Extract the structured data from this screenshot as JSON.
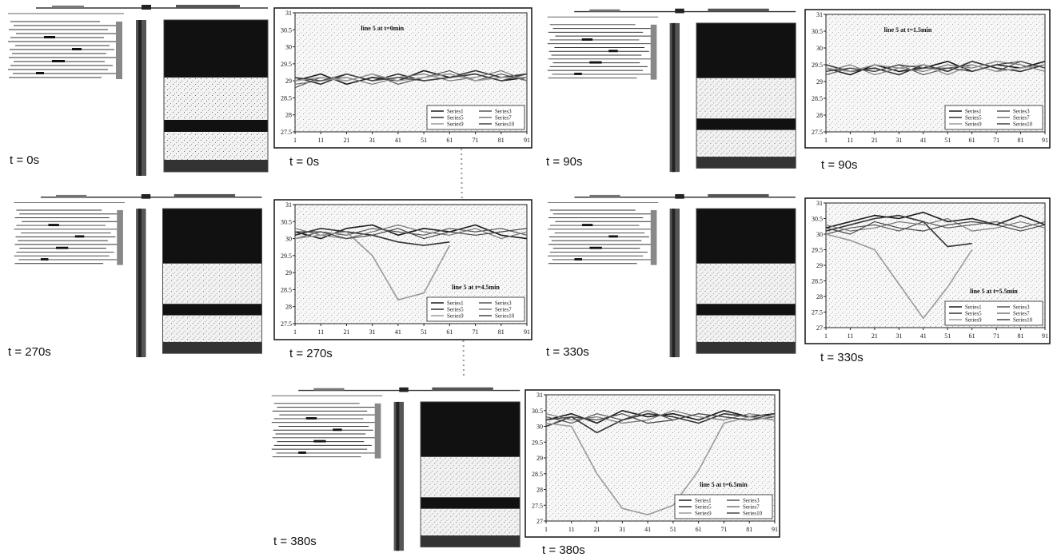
{
  "panels": [
    {
      "image_label": "t = 0s",
      "chart_label": "t = 0s"
    },
    {
      "image_label": "t = 90s",
      "chart_label": "t = 90s"
    },
    {
      "image_label": "t = 270s",
      "chart_label": "t = 270s"
    },
    {
      "image_label": "t = 330s",
      "chart_label": "t = 330s"
    },
    {
      "image_label": "t = 380s",
      "chart_label": "t = 380s"
    }
  ],
  "chart_data": [
    {
      "type": "line",
      "title": "line 5 at t=0min",
      "legend": "lower right",
      "x": [
        1,
        11,
        21,
        31,
        41,
        51,
        61,
        71,
        81,
        91
      ],
      "xlim": [
        1,
        91
      ],
      "xticks": [
        1,
        11,
        21,
        31,
        41,
        51,
        61,
        71,
        81,
        91
      ],
      "ylim": [
        27.5,
        31
      ],
      "yticks": [
        27.5,
        28,
        28.5,
        29,
        29.5,
        30,
        30.5,
        31
      ],
      "series": [
        {
          "name": "Series1",
          "color": "#1a1a1a",
          "values": [
            29.0,
            29.2,
            28.9,
            29.1,
            29.0,
            29.3,
            29.1,
            29.2,
            29.0,
            29.1
          ]
        },
        {
          "name": "Series3",
          "color": "#555555",
          "values": [
            28.8,
            29.1,
            29.0,
            29.2,
            28.9,
            29.1,
            29.3,
            29.0,
            29.2,
            29.0
          ]
        },
        {
          "name": "Series5",
          "color": "#333333",
          "values": [
            29.1,
            28.9,
            29.2,
            29.0,
            29.2,
            29.0,
            29.1,
            29.3,
            29.1,
            29.2
          ]
        },
        {
          "name": "Series7",
          "color": "#777777",
          "values": [
            28.9,
            29.0,
            29.1,
            28.9,
            29.1,
            29.2,
            29.0,
            29.1,
            29.3,
            29.0
          ]
        },
        {
          "name": "Series9",
          "color": "#9a9a9a",
          "values": [
            29.0,
            29.1,
            29.0,
            29.2,
            29.0,
            29.1,
            29.2,
            29.0,
            29.1,
            29.1
          ]
        },
        {
          "name": "Series10",
          "color": "#444444",
          "values": [
            29.1,
            29.0,
            29.2,
            29.0,
            29.1,
            29.0,
            29.1,
            29.2,
            29.0,
            29.2
          ]
        }
      ]
    },
    {
      "type": "line",
      "title": "line 5 at t=1.5min",
      "legend": "lower right",
      "x": [
        1,
        11,
        21,
        31,
        41,
        51,
        61,
        71,
        81,
        91
      ],
      "xlim": [
        1,
        91
      ],
      "xticks": [
        1,
        11,
        21,
        31,
        41,
        51,
        61,
        71,
        81,
        91
      ],
      "ylim": [
        27.5,
        31
      ],
      "yticks": [
        27.5,
        28,
        28.5,
        29,
        29.5,
        30,
        30.5,
        31
      ],
      "series": [
        {
          "name": "Series1",
          "color": "#1a1a1a",
          "values": [
            29.4,
            29.2,
            29.5,
            29.3,
            29.4,
            29.6,
            29.3,
            29.5,
            29.4,
            29.6
          ]
        },
        {
          "name": "Series3",
          "color": "#555555",
          "values": [
            29.2,
            29.4,
            29.3,
            29.5,
            29.2,
            29.4,
            29.5,
            29.3,
            29.6,
            29.4
          ]
        },
        {
          "name": "Series5",
          "color": "#333333",
          "values": [
            29.5,
            29.3,
            29.4,
            29.2,
            29.5,
            29.3,
            29.6,
            29.4,
            29.3,
            29.5
          ]
        },
        {
          "name": "Series7",
          "color": "#777777",
          "values": [
            29.3,
            29.5,
            29.2,
            29.4,
            29.3,
            29.5,
            29.4,
            29.6,
            29.5,
            29.3
          ]
        },
        {
          "name": "Series9",
          "color": "#9a9a9a",
          "values": [
            29.4,
            29.3,
            29.5,
            29.4,
            29.5,
            29.2,
            29.5,
            29.3,
            29.4,
            29.5
          ]
        },
        {
          "name": "Series10",
          "color": "#444444",
          "values": [
            29.3,
            29.4,
            29.3,
            29.5,
            29.4,
            29.4,
            29.3,
            29.5,
            29.6,
            29.4
          ]
        }
      ]
    },
    {
      "type": "line",
      "title": "line 5 at t=4.5min",
      "legend": "lower right",
      "x": [
        1,
        11,
        21,
        31,
        41,
        51,
        61,
        71,
        81,
        91
      ],
      "xlim": [
        1,
        91
      ],
      "xticks": [
        1,
        11,
        21,
        31,
        41,
        51,
        61,
        71,
        81,
        91
      ],
      "ylim": [
        27.5,
        31
      ],
      "yticks": [
        27.5,
        28,
        28.5,
        29,
        29.5,
        30,
        30.5,
        31
      ],
      "series": [
        {
          "name": "Series1",
          "color": "#1a1a1a",
          "values": [
            30.2,
            30.0,
            30.3,
            30.4,
            30.1,
            30.3,
            30.2,
            30.4,
            30.1,
            30.0
          ]
        },
        {
          "name": "Series3",
          "color": "#555555",
          "values": [
            30.0,
            30.2,
            30.1,
            30.3,
            30.2,
            30.1,
            30.3,
            30.2,
            30.3,
            30.1
          ]
        },
        {
          "name": "Series5",
          "color": "#333333",
          "values": [
            30.1,
            30.3,
            30.2,
            30.1,
            29.9,
            29.8,
            29.9,
            null,
            null,
            null
          ]
        },
        {
          "name": "Series7",
          "color": "#777777",
          "values": [
            30.3,
            30.1,
            30.0,
            30.2,
            30.4,
            30.2,
            30.1,
            30.3,
            30.0,
            30.2
          ]
        },
        {
          "name": "Series9",
          "color": "#9a9a9a",
          "values": [
            30.0,
            30.1,
            30.2,
            29.5,
            28.2,
            28.4,
            29.8,
            null,
            null,
            null
          ]
        },
        {
          "name": "Series10",
          "color": "#444444",
          "values": [
            30.2,
            30.2,
            30.0,
            30.1,
            30.3,
            30.0,
            30.2,
            30.1,
            30.2,
            30.3
          ]
        }
      ]
    },
    {
      "type": "line",
      "title": "line 5 at t=5.5min",
      "legend": "lower right",
      "x": [
        1,
        11,
        21,
        31,
        41,
        51,
        61,
        71,
        81,
        91
      ],
      "xlim": [
        1,
        91
      ],
      "xticks": [
        1,
        11,
        21,
        31,
        41,
        51,
        61,
        71,
        81,
        91
      ],
      "ylim": [
        27,
        31
      ],
      "yticks": [
        27,
        27.5,
        28,
        28.5,
        29,
        29.5,
        30,
        30.5,
        31
      ],
      "series": [
        {
          "name": "Series1",
          "color": "#1a1a1a",
          "values": [
            30.2,
            30.4,
            30.6,
            30.5,
            30.7,
            30.4,
            30.5,
            30.3,
            30.6,
            30.3
          ]
        },
        {
          "name": "Series3",
          "color": "#555555",
          "values": [
            30.0,
            30.2,
            30.3,
            30.1,
            30.4,
            30.2,
            30.3,
            30.4,
            30.2,
            30.4
          ]
        },
        {
          "name": "Series5",
          "color": "#333333",
          "values": [
            30.1,
            30.3,
            30.5,
            30.6,
            30.4,
            29.6,
            29.7,
            null,
            null,
            null
          ]
        },
        {
          "name": "Series7",
          "color": "#777777",
          "values": [
            30.3,
            30.1,
            30.2,
            30.4,
            30.3,
            30.5,
            30.1,
            30.2,
            30.4,
            30.2
          ]
        },
        {
          "name": "Series9",
          "color": "#9a9a9a",
          "values": [
            30.0,
            29.8,
            29.5,
            28.4,
            27.3,
            28.3,
            29.5,
            null,
            null,
            null
          ]
        },
        {
          "name": "Series10",
          "color": "#444444",
          "values": [
            30.2,
            30.0,
            30.4,
            30.2,
            30.1,
            30.3,
            30.4,
            30.3,
            30.1,
            30.3
          ]
        }
      ]
    },
    {
      "type": "line",
      "title": "line 5 at t=6.5min",
      "legend": "lower right",
      "x": [
        1,
        11,
        21,
        31,
        41,
        51,
        61,
        71,
        81,
        91
      ],
      "xlim": [
        1,
        91
      ],
      "xticks": [
        1,
        11,
        21,
        31,
        41,
        51,
        61,
        71,
        81,
        91
      ],
      "ylim": [
        27,
        31
      ],
      "yticks": [
        27,
        27.5,
        28,
        28.5,
        29,
        29.5,
        30,
        30.5,
        31
      ],
      "series": [
        {
          "name": "Series1",
          "color": "#1a1a1a",
          "values": [
            30.2,
            30.4,
            30.1,
            30.5,
            30.3,
            30.4,
            30.2,
            30.5,
            30.3,
            30.4
          ]
        },
        {
          "name": "Series3",
          "color": "#555555",
          "values": [
            30.3,
            30.1,
            30.4,
            30.2,
            30.5,
            30.2,
            30.4,
            30.3,
            30.2,
            30.3
          ]
        },
        {
          "name": "Series5",
          "color": "#333333",
          "values": [
            30.0,
            30.3,
            29.8,
            30.2,
            30.4,
            30.3,
            30.1,
            30.4,
            30.3,
            30.2
          ]
        },
        {
          "name": "Series7",
          "color": "#777777",
          "values": [
            30.4,
            30.2,
            30.3,
            30.1,
            30.2,
            30.5,
            30.3,
            30.2,
            30.4,
            30.3
          ]
        },
        {
          "name": "Series9",
          "color": "#9a9a9a",
          "values": [
            30.1,
            30.0,
            28.5,
            27.4,
            27.2,
            27.5,
            28.6,
            30.1,
            30.3,
            30.2
          ]
        },
        {
          "name": "Series10",
          "color": "#444444",
          "values": [
            30.2,
            30.3,
            30.2,
            30.4,
            30.1,
            30.2,
            30.4,
            30.3,
            30.2,
            30.4
          ]
        }
      ]
    }
  ]
}
